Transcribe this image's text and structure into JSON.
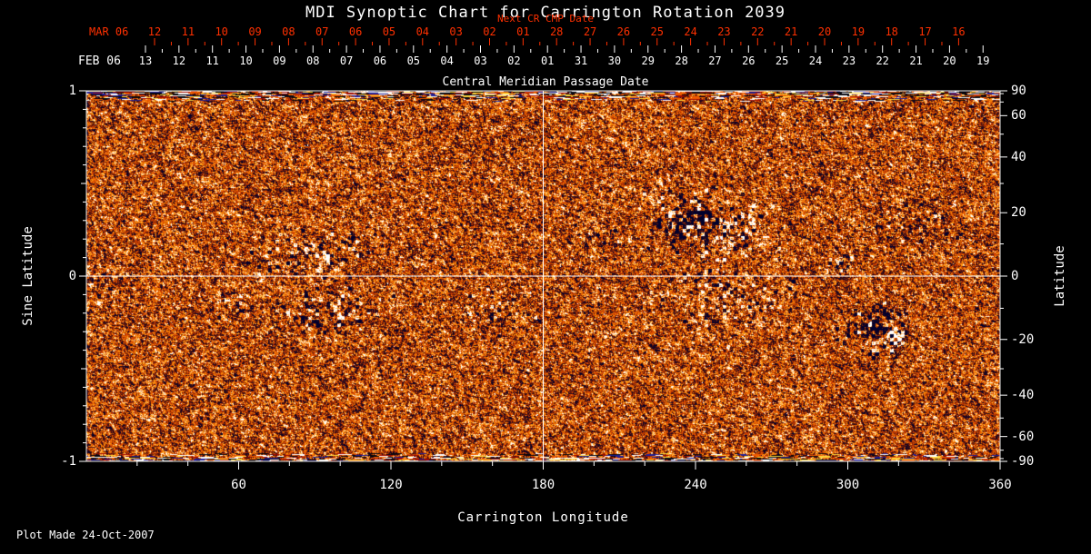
{
  "footer": {
    "plot_made": "Plot Made 24-Oct-2007"
  },
  "colors": {
    "background": "#000000",
    "axis_white": "#ffffff",
    "axis_red": "#ff3000"
  },
  "chart_data": {
    "type": "heatmap",
    "title": "MDI Synoptic Chart for Carrington Rotation 2039",
    "xlabel": "Carrington Longitude",
    "ylabel_left": "Sine Latitude",
    "ylabel_right": "Latitude",
    "xlim": [
      0,
      360
    ],
    "sine_latitude_lim": [
      -1,
      1
    ],
    "x_ticks": [
      60,
      120,
      180,
      240,
      300,
      360
    ],
    "x_minor_tick_step": 20,
    "sine_latitude_tick_labels": [
      "1",
      "0",
      "-1"
    ],
    "latitude_ticks": [
      90,
      60,
      40,
      20,
      0,
      -20,
      -40,
      -60,
      -90
    ],
    "grid_lines": {
      "longitude": 180,
      "sine_latitude": 0
    },
    "top_axis_next_cr": {
      "month_label": "MAR 06",
      "note": "Next CR CMP Date",
      "color": "#ff3000",
      "day_labels": [
        "12",
        "11",
        "10",
        "09",
        "08",
        "07",
        "06",
        "05",
        "04",
        "03",
        "02",
        "01",
        "28",
        "27",
        "26",
        "25",
        "24",
        "23",
        "22",
        "21",
        "20",
        "19",
        "18",
        "17",
        "16"
      ]
    },
    "top_axis_cmp": {
      "month_label": "FEB 06",
      "axis_title": "Central Meridian Passage Date",
      "day_labels": [
        "13",
        "12",
        "11",
        "10",
        "09",
        "08",
        "07",
        "06",
        "05",
        "04",
        "03",
        "02",
        "01",
        "31",
        "30",
        "29",
        "28",
        "27",
        "26",
        "25",
        "24",
        "23",
        "22",
        "21",
        "20",
        "19"
      ]
    },
    "colormap": {
      "zero_field": "#d74000",
      "strong_positive": "#ffffff",
      "strong_negative": "#05051e",
      "description": "SOHO/MDI magnetogram palette: orange-red granular background, white/yellow = positive magnetic polarity, black/navy = negative polarity; noisy streaked bands at both poles"
    },
    "active_regions": [
      {
        "lon": 88,
        "sin_lat": 0.12,
        "extent_lon_deg": 11,
        "extent_sin": 0.09,
        "strength": 0.95,
        "positive_fraction": 0.45,
        "density": 0.5
      },
      {
        "lon": 95,
        "sin_lat": -0.2,
        "extent_lon_deg": 11,
        "extent_sin": 0.07,
        "strength": 1.0,
        "positive_fraction": 0.4,
        "density": 0.55
      },
      {
        "lon": 57,
        "sin_lat": -0.16,
        "extent_lon_deg": 4.5,
        "extent_sin": 0.045,
        "strength": 0.9,
        "positive_fraction": 0.3,
        "density": 0.45
      },
      {
        "lon": 161,
        "sin_lat": -0.18,
        "extent_lon_deg": 8,
        "extent_sin": 0.06,
        "strength": 0.95,
        "positive_fraction": 0.35,
        "density": 0.5
      },
      {
        "lon": 238,
        "sin_lat": 0.3,
        "extent_lon_deg": 9,
        "extent_sin": 0.09,
        "strength": 1.3,
        "positive_fraction": 0.25,
        "density": 0.7
      },
      {
        "lon": 258,
        "sin_lat": 0.24,
        "extent_lon_deg": 7,
        "extent_sin": 0.075,
        "strength": 1.2,
        "positive_fraction": 0.75,
        "density": 0.65
      },
      {
        "lon": 250,
        "sin_lat": -0.12,
        "extent_lon_deg": 14,
        "extent_sin": 0.11,
        "strength": 0.95,
        "positive_fraction": 0.6,
        "density": 0.45
      },
      {
        "lon": 297,
        "sin_lat": 0.08,
        "extent_lon_deg": 3,
        "extent_sin": 0.035,
        "strength": 1.2,
        "positive_fraction": 0.5,
        "density": 0.8
      },
      {
        "lon": 312,
        "sin_lat": -0.28,
        "extent_lon_deg": 7,
        "extent_sin": 0.08,
        "strength": 1.4,
        "positive_fraction": 0.2,
        "density": 0.75
      },
      {
        "lon": 318,
        "sin_lat": -0.33,
        "extent_lon_deg": 2.5,
        "extent_sin": 0.03,
        "strength": 1.7,
        "positive_fraction": 0.95,
        "density": 1.0
      },
      {
        "lon": 328,
        "sin_lat": 0.28,
        "extent_lon_deg": 9,
        "extent_sin": 0.07,
        "strength": 0.85,
        "positive_fraction": 0.3,
        "density": 0.45
      },
      {
        "lon": 5,
        "sin_lat": -0.03,
        "extent_lon_deg": 6,
        "extent_sin": 0.06,
        "strength": 0.7,
        "positive_fraction": 0.4,
        "density": 0.4
      },
      {
        "lon": 205,
        "sin_lat": 0.2,
        "extent_lon_deg": 6,
        "extent_sin": 0.05,
        "strength": 0.75,
        "positive_fraction": 0.35,
        "density": 0.4
      }
    ]
  }
}
